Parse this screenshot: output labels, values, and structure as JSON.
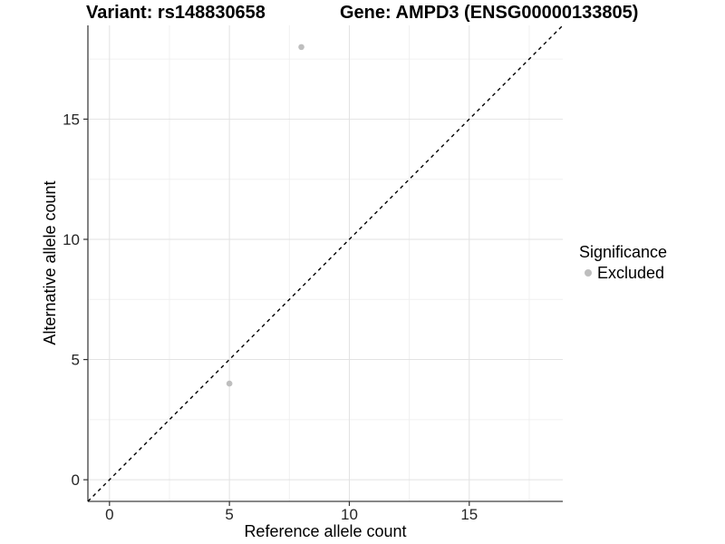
{
  "titles": {
    "variant": "Variant: rs148830658",
    "gene": "Gene: AMPD3 (ENSG00000133805)"
  },
  "chart_data": {
    "type": "scatter",
    "title_left": "Variant: rs148830658",
    "title_right": "Gene: AMPD3 (ENSG00000133805)",
    "xlabel": "Reference allele count",
    "ylabel": "Alternative allele count",
    "xlim": [
      -0.9,
      18.9
    ],
    "ylim": [
      -0.9,
      18.9
    ],
    "xticks": [
      0,
      5,
      10,
      15
    ],
    "yticks": [
      0,
      5,
      10,
      15
    ],
    "xminor": [
      2.5,
      7.5,
      12.5,
      17.5
    ],
    "yminor": [
      2.5,
      7.5,
      12.5,
      17.5
    ],
    "grid": true,
    "identity_line": {
      "style": "dashed",
      "color": "#000000",
      "slope": 1,
      "intercept": 0
    },
    "series": [
      {
        "name": "Excluded",
        "color": "#bebebe",
        "points": [
          [
            5,
            4
          ],
          [
            8,
            18
          ]
        ]
      }
    ],
    "legend": {
      "title": "Significance",
      "position": "right",
      "items": [
        {
          "label": "Excluded",
          "color": "#bebebe"
        }
      ]
    },
    "colors": {
      "axis_line": "#404040",
      "tick_mark": "#333333",
      "tick_label": "#262626",
      "grid_major": "#e2e2e2",
      "grid_minor": "#f0f0f0",
      "background": "#ffffff"
    }
  }
}
